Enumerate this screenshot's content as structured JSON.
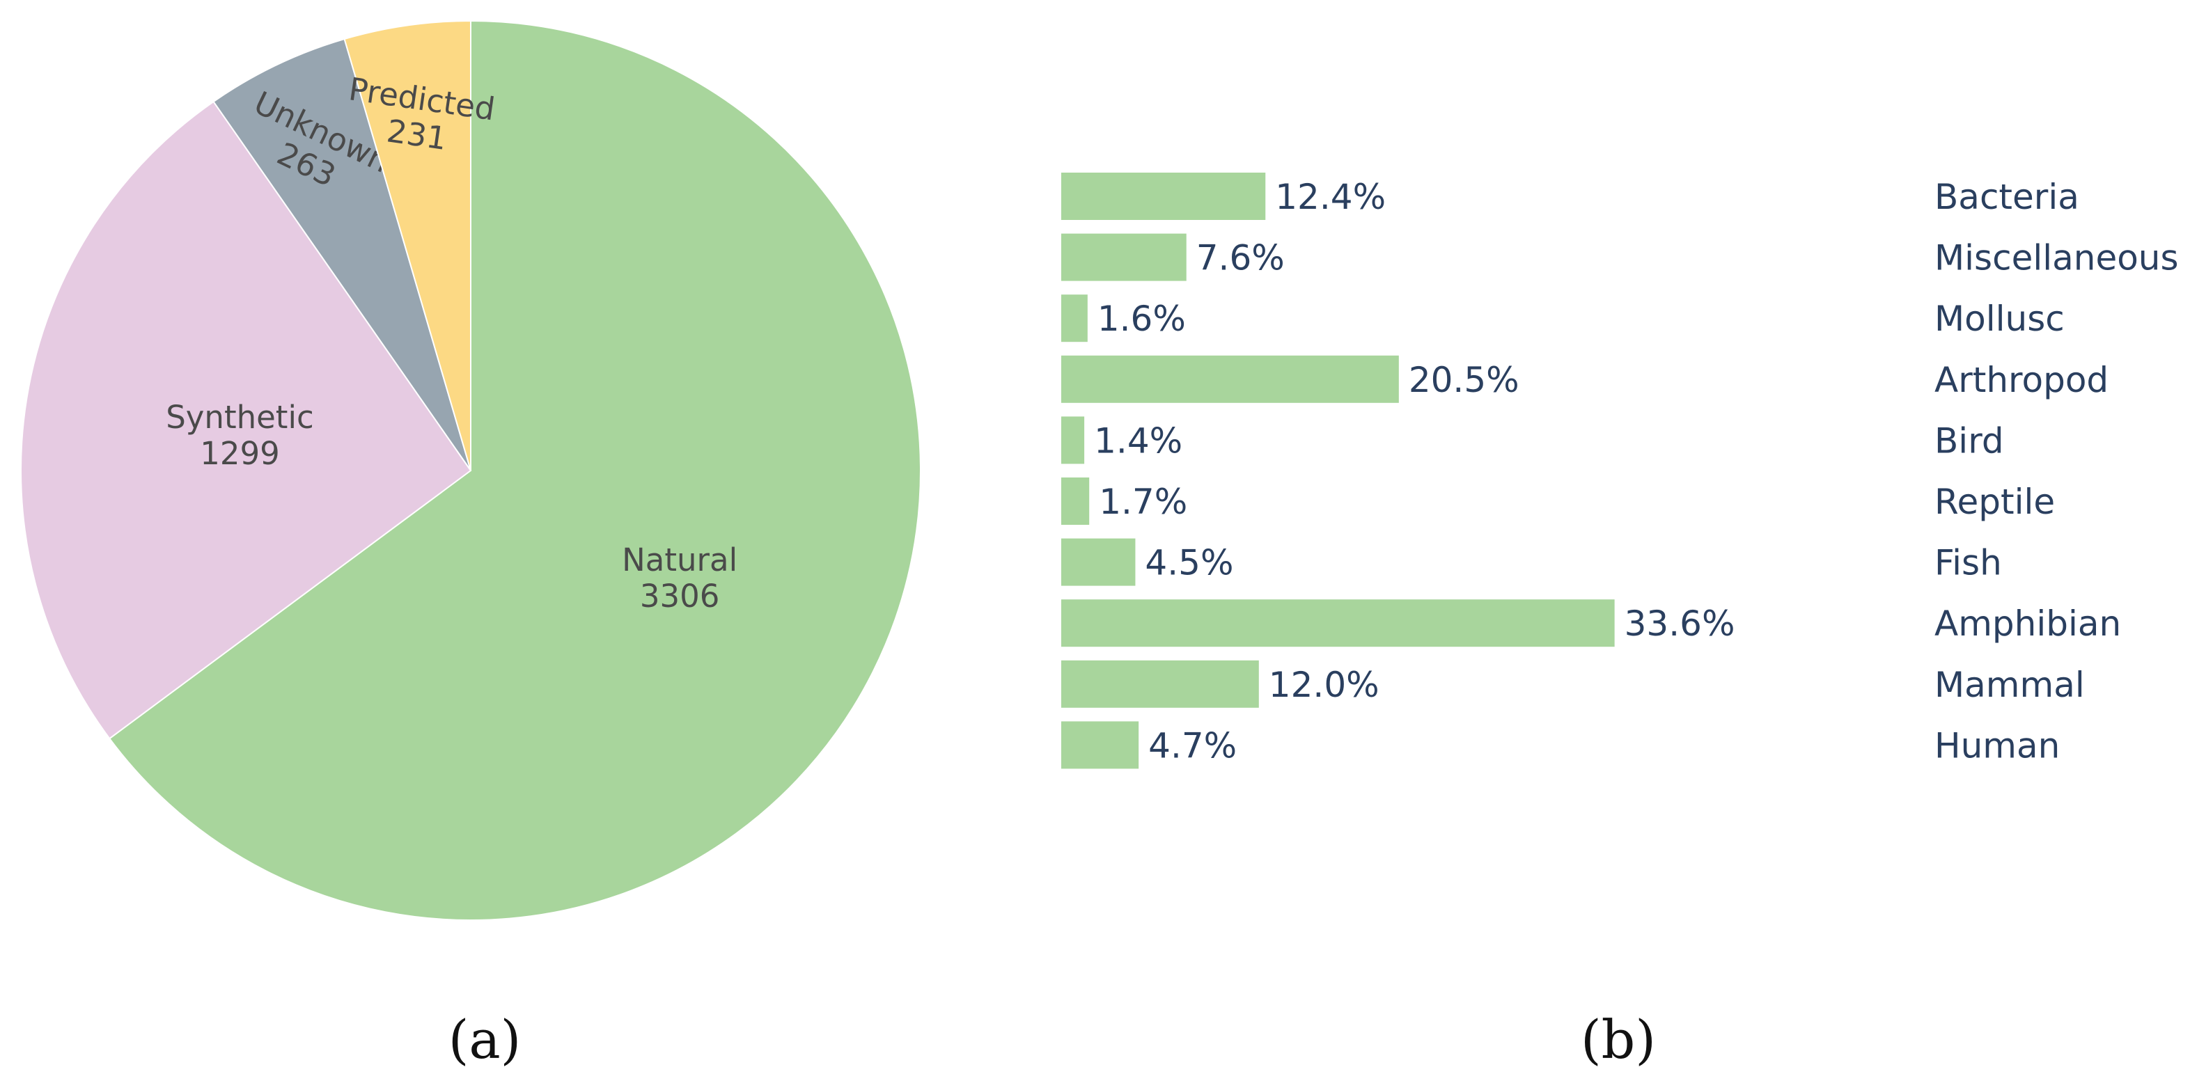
{
  "chart_data": [
    {
      "type": "pie",
      "labels": [
        "Natural",
        "Synthetic",
        "Unknown",
        "Predicted"
      ],
      "values": [
        3306,
        1299,
        263,
        231
      ],
      "colors": [
        "#a8d59c",
        "#e6cbe2",
        "#97a5b0",
        "#fcd984"
      ],
      "direction": "clockwise",
      "start": "top"
    },
    {
      "type": "bar",
      "orientation": "horizontal",
      "categories": [
        "Bacteria",
        "Miscellaneous",
        "Mollusc",
        "Arthropod",
        "Bird",
        "Reptile",
        "Fish",
        "Amphibian",
        "Mammal",
        "Human"
      ],
      "values": [
        12.4,
        7.6,
        1.6,
        20.5,
        1.4,
        1.7,
        4.5,
        33.6,
        12.0,
        4.7
      ],
      "value_labels": [
        "12.4%",
        "7.6%",
        "1.6%",
        "20.5%",
        "1.4%",
        "1.7%",
        "4.5%",
        "33.6%",
        "12.0%",
        "4.7%"
      ],
      "bar_color": "#a8d59c"
    }
  ],
  "captions": {
    "a": "(a)",
    "b": "(b)"
  }
}
